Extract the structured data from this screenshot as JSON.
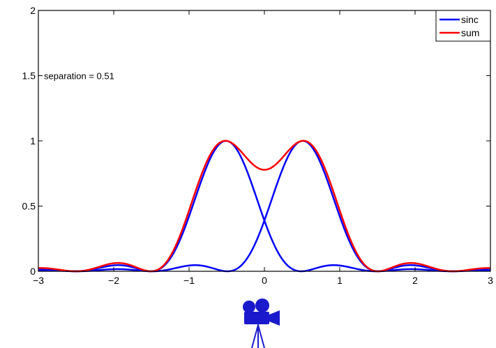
{
  "chart_data": {
    "type": "line",
    "title": "",
    "xlabel": "",
    "ylabel": "",
    "xlim": [
      -3,
      3
    ],
    "ylim": [
      0,
      2
    ],
    "x_ticks": [
      -3,
      -2,
      -1,
      0,
      1,
      2,
      3
    ],
    "x_tick_labels": [
      "−3",
      "−2",
      "−1",
      "0",
      "1",
      "2",
      "3"
    ],
    "y_ticks": [
      0,
      0.5,
      1,
      1.5,
      2
    ],
    "y_tick_labels": [
      "0",
      "0.5",
      "1",
      "1.5",
      "2"
    ],
    "grid": false,
    "legend_position": "top-right",
    "separation": 0.51,
    "annotation": "separation = 0.51",
    "series": [
      {
        "name": "sinc",
        "color": "#0000ff",
        "formula": "sinc(x - 0.51)^2",
        "shift": 0.51
      },
      {
        "name": "sinc",
        "color": "#0000ff",
        "formula": "sinc(x + 0.51)^2",
        "shift": -0.51,
        "in_legend": false
      },
      {
        "name": "sum",
        "color": "#ff0000",
        "formula": "sinc(x - 0.51)^2 + sinc(x + 0.51)^2"
      }
    ],
    "legend": [
      {
        "label": "sinc",
        "color": "#0000ff"
      },
      {
        "label": "sum",
        "color": "#ff0000"
      }
    ]
  },
  "icon": {
    "name": "video-camera-icon",
    "color": "#1a1acc"
  }
}
